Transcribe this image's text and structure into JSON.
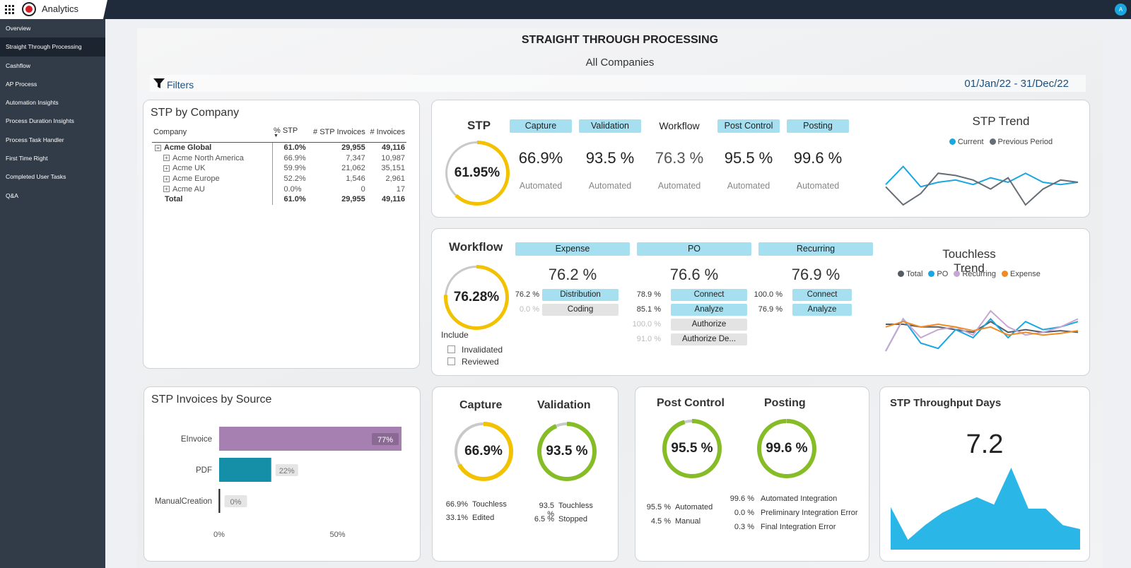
{
  "app": {
    "title": "Analytics",
    "avatar": "A"
  },
  "sidebar": {
    "items": [
      {
        "label": "Overview"
      },
      {
        "label": "Straight Through Processing",
        "active": true
      },
      {
        "label": "Cashflow"
      },
      {
        "label": "AP Process"
      },
      {
        "label": "Automation Insights"
      },
      {
        "label": "Process Duration Insights"
      },
      {
        "label": "Process Task Handler"
      },
      {
        "label": "First Time Right"
      },
      {
        "label": "Completed User Tasks"
      },
      {
        "label": "Q&A"
      }
    ]
  },
  "page": {
    "title": "STRAIGHT THROUGH PROCESSING",
    "subtitle": "All Companies",
    "filters_label": "Filters",
    "date_range": "01/Jan/22 - 31/Dec/22"
  },
  "colors": {
    "accent": "#a5dff0",
    "donut": "#f2c200",
    "donut_green": "#86bc25",
    "teal": "#1aa7e0",
    "purple": "#a580b0"
  },
  "stp_by_company": {
    "title": "STP by Company",
    "columns": [
      "Company",
      "% STP",
      "# STP Invoices",
      "# Invoices"
    ],
    "rows": [
      {
        "company": "Acme Global",
        "pct": "61.0%",
        "stp": "29,955",
        "inv": "49,116",
        "level": 0,
        "toggle": "−"
      },
      {
        "company": "Acme North America",
        "pct": "66.9%",
        "stp": "7,347",
        "inv": "10,987",
        "level": 1,
        "toggle": "+"
      },
      {
        "company": "Acme UK",
        "pct": "59.9%",
        "stp": "21,062",
        "inv": "35,151",
        "level": 1,
        "toggle": "+"
      },
      {
        "company": "Acme Europe",
        "pct": "52.2%",
        "stp": "1,546",
        "inv": "2,961",
        "level": 1,
        "toggle": "+"
      },
      {
        "company": "Acme AU",
        "pct": "0.0%",
        "stp": "0",
        "inv": "17",
        "level": 1,
        "toggle": "+"
      }
    ],
    "total": {
      "company": "Total",
      "pct": "61.0%",
      "stp": "29,955",
      "inv": "49,116"
    }
  },
  "stp_panel": {
    "title": "STP",
    "donut": {
      "label": "61.95%",
      "fraction": 0.6195
    },
    "stages": [
      {
        "name": "Capture",
        "value": "66.9%",
        "sub": "Automated",
        "pill": true
      },
      {
        "name": "Validation",
        "value": "93.5 %",
        "sub": "Automated",
        "pill": true
      },
      {
        "name": "Workflow",
        "value": "76.3 %",
        "sub": "Automated",
        "pill": false
      },
      {
        "name": "Post Control",
        "value": "95.5 %",
        "sub": "Automated",
        "pill": true
      },
      {
        "name": "Posting",
        "value": "99.6 %",
        "sub": "Automated",
        "pill": true
      }
    ],
    "trend": {
      "title": "STP Trend",
      "legend": [
        "Current",
        "Previous Period"
      ]
    }
  },
  "workflow_panel": {
    "title": "Workflow",
    "donut": {
      "label": "76.28%",
      "fraction": 0.7628
    },
    "include_label": "Include",
    "checkboxes": [
      "Invalidated",
      "Reviewed"
    ],
    "groups": [
      {
        "name": "Expense",
        "value": "76.2 %",
        "steps": [
          {
            "pct": "76.2 %",
            "label": "Distribution",
            "active": true
          },
          {
            "pct": "0.0 %",
            "label": "Coding",
            "active": false
          }
        ]
      },
      {
        "name": "PO",
        "value": "76.6 %",
        "steps": [
          {
            "pct": "78.9 %",
            "label": "Connect",
            "active": true
          },
          {
            "pct": "85.1 %",
            "label": "Analyze",
            "active": true
          },
          {
            "pct": "100.0 %",
            "label": "Authorize",
            "active": false
          },
          {
            "pct": "91.0 %",
            "label": "Authorize De...",
            "active": false
          }
        ]
      },
      {
        "name": "Recurring",
        "value": "76.9 %",
        "steps": [
          {
            "pct": "100.0 %",
            "label": "Connect",
            "active": true
          },
          {
            "pct": "76.9 %",
            "label": "Analyze",
            "active": true
          }
        ]
      }
    ],
    "trend": {
      "title": "Touchless Trend",
      "legend": [
        "Total",
        "PO",
        "Recurring",
        "Expense"
      ]
    }
  },
  "invoices_by_source": {
    "title": "STP Invoices by Source",
    "x_ticks": [
      "0%",
      "50%"
    ],
    "bars": [
      {
        "label": "EInvoice",
        "value": 77,
        "text": "77%"
      },
      {
        "label": "PDF",
        "value": 22,
        "text": "22%"
      },
      {
        "label": "ManualCreation",
        "value": 0,
        "text": "0%"
      }
    ]
  },
  "capture_validation": {
    "capture": {
      "title": "Capture",
      "label": "66.9%",
      "fraction": 0.669,
      "stats": [
        {
          "pct": "66.9%",
          "label": "Touchless"
        },
        {
          "pct": "33.1%",
          "label": "Edited"
        }
      ]
    },
    "validation": {
      "title": "Validation",
      "label": "93.5 %",
      "fraction": 0.935,
      "stats": [
        {
          "pct": "93.5 %",
          "label": "Touchless"
        },
        {
          "pct": "6.5 %",
          "label": "Stopped"
        }
      ]
    }
  },
  "post_posting": {
    "post_control": {
      "title": "Post Control",
      "label": "95.5 %",
      "fraction": 0.955,
      "stats": [
        {
          "pct": "95.5 %",
          "label": "Automated"
        },
        {
          "pct": "4.5 %",
          "label": "Manual"
        }
      ]
    },
    "posting": {
      "title": "Posting",
      "label": "99.6 %",
      "fraction": 0.996,
      "stats": [
        {
          "pct": "99.6 %",
          "label": "Automated Integration"
        },
        {
          "pct": "0.0 %",
          "label": "Preliminary Integration Error"
        },
        {
          "pct": "0.3 %",
          "label": "Final Integration Error"
        }
      ]
    }
  },
  "throughput": {
    "title": "STP Throughput Days",
    "value": "7.2"
  },
  "chart_data": [
    {
      "type": "line",
      "title": "STP Trend",
      "x": [
        1,
        2,
        3,
        4,
        5,
        6,
        7,
        8,
        9,
        10,
        11,
        12
      ],
      "series": [
        {
          "name": "Current",
          "values": [
            0.45,
            0.85,
            0.4,
            0.5,
            0.55,
            0.45,
            0.6,
            0.5,
            0.7,
            0.5,
            0.45,
            0.5
          ]
        },
        {
          "name": "Previous Period",
          "values": [
            0.4,
            0.0,
            0.25,
            0.7,
            0.65,
            0.55,
            0.35,
            0.6,
            0.0,
            0.35,
            0.55,
            0.5
          ]
        }
      ]
    },
    {
      "type": "line",
      "title": "Touchless Trend",
      "x": [
        1,
        2,
        3,
        4,
        5,
        6,
        7,
        8,
        9,
        10,
        11,
        12
      ],
      "series": [
        {
          "name": "Total",
          "values": [
            0.5,
            0.5,
            0.45,
            0.45,
            0.4,
            0.35,
            0.55,
            0.35,
            0.4,
            0.35,
            0.38,
            0.35
          ]
        },
        {
          "name": "PO",
          "values": [
            0.0,
            0.6,
            0.15,
            0.05,
            0.4,
            0.25,
            0.6,
            0.25,
            0.55,
            0.4,
            0.45,
            0.55
          ]
        },
        {
          "name": "Recurring",
          "values": [
            0.0,
            0.6,
            0.25,
            0.4,
            0.45,
            0.3,
            0.75,
            0.45,
            0.3,
            0.35,
            0.45,
            0.6
          ]
        },
        {
          "name": "Expense",
          "values": [
            0.45,
            0.55,
            0.45,
            0.5,
            0.45,
            0.38,
            0.45,
            0.3,
            0.35,
            0.3,
            0.33,
            0.38
          ]
        }
      ]
    },
    {
      "type": "area",
      "title": "STP Throughput Days",
      "x": [
        1,
        2,
        3,
        4,
        5,
        6,
        7,
        8,
        9,
        10,
        11,
        12
      ],
      "series": [
        {
          "name": "",
          "values": [
            0.52,
            0.12,
            0.3,
            0.45,
            0.55,
            0.64,
            0.55,
            1.0,
            0.5,
            0.5,
            0.3,
            0.25
          ]
        }
      ]
    },
    {
      "type": "bar",
      "title": "STP Invoices by Source",
      "categories": [
        "EInvoice",
        "PDF",
        "ManualCreation"
      ],
      "values": [
        77,
        22,
        0
      ],
      "xlim": [
        0,
        77
      ]
    }
  ]
}
